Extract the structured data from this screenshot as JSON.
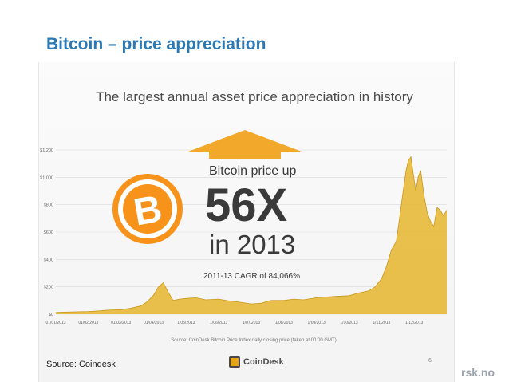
{
  "slide": {
    "title": "Bitcoin – price appreciation",
    "source_note": "Source: Coindesk",
    "footer_domain": "rsk.no"
  },
  "infographic": {
    "headline": "The largest annual asset price appreciation in history",
    "callout_top": "Bitcoin price up",
    "callout_big": "56X",
    "callout_year": "in 2013",
    "cagr_note": "2011-13 CAGR of 84,066%",
    "chart_source": "Source: CoinDesk Bitcoin Price Index daily closing price (taken at 00:00 GMT)",
    "logo_text": "CoinDesk",
    "page_number": "6",
    "bitcoin_symbol": "B",
    "icons": [
      "bitcoin-coin-icon",
      "up-arrow-icon",
      "coindesk-logo-icon"
    ]
  },
  "colors": {
    "title_blue": "#2a78b4",
    "area_gold": "#e8b93a",
    "line_gold": "#c9961c",
    "coin_orange": "#f7931a",
    "text_dark": "#3a3a3a"
  },
  "chart_data": {
    "type": "area",
    "title": "",
    "xlabel": "",
    "ylabel": "",
    "ylim": [
      0,
      1200
    ],
    "yticks": [
      "$0",
      "$200",
      "$400",
      "$600",
      "$800",
      "$1,000",
      "$1,200"
    ],
    "xticks": [
      "01/01/2013",
      "01/02/2013",
      "01/03/2013",
      "01/04/2013",
      "1/05/2013",
      "1/06/2013",
      "1/07/2013",
      "1/08/2013",
      "1/09/2013",
      "1/10/2013",
      "1/11/2013",
      "1/12/2013"
    ],
    "grid": true,
    "series": [
      {
        "x": [
          0,
          0.5,
          1,
          1.3,
          1.6,
          2,
          2.3,
          2.6,
          2.8,
          3.0,
          3.15,
          3.3,
          3.45,
          3.6,
          3.8,
          4,
          4.3,
          4.6,
          5,
          5.3,
          5.6,
          6,
          6.3,
          6.6,
          7,
          7.3,
          7.6,
          8,
          8.3,
          8.6,
          9,
          9.3,
          9.6,
          9.8,
          10,
          10.15,
          10.3,
          10.45,
          10.55,
          10.65,
          10.75,
          10.82,
          10.9,
          10.97,
          11.05,
          11.12,
          11.2,
          11.3,
          11.4,
          11.5,
          11.6,
          11.7,
          11.8,
          11.9,
          12
        ],
        "values": [
          13,
          17,
          20,
          24,
          30,
          33,
          44,
          60,
          90,
          140,
          200,
          230,
          160,
          100,
          110,
          115,
          120,
          105,
          110,
          97,
          90,
          75,
          80,
          100,
          100,
          110,
          105,
          120,
          125,
          130,
          135,
          155,
          170,
          200,
          260,
          350,
          470,
          530,
          700,
          880,
          1050,
          1120,
          1150,
          1030,
          900,
          1000,
          1050,
          870,
          740,
          680,
          640,
          780,
          760,
          720,
          760
        ]
      }
    ]
  }
}
